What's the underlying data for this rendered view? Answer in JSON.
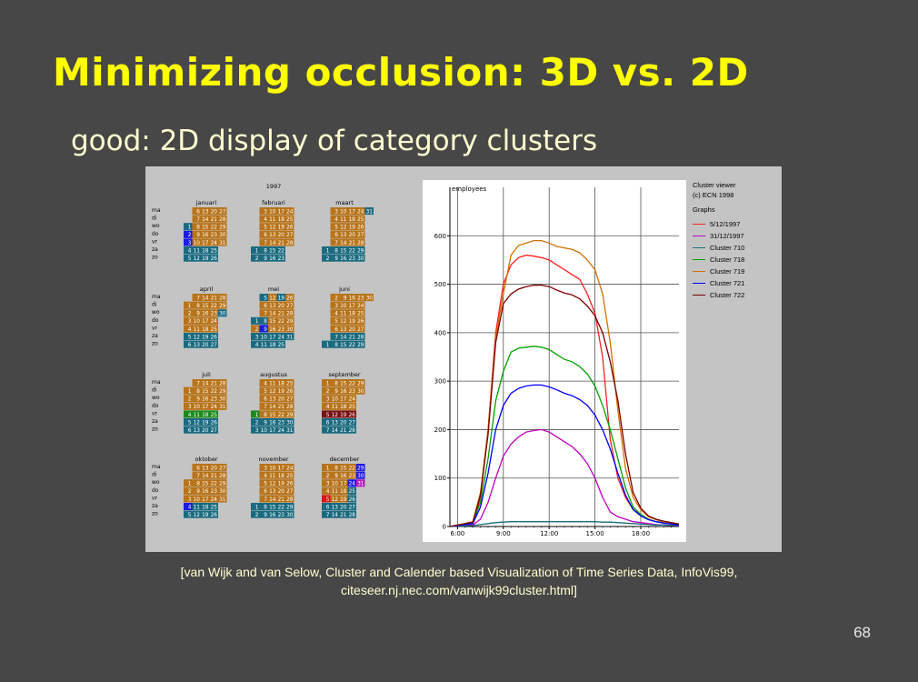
{
  "slide": {
    "title": "Minimizing occlusion: 3D vs. 2D",
    "subtitle": "good: 2D display of category clusters",
    "caption_line1": "[van Wijk and van Selow, Cluster and Calender based Visualization of Time Series Data, InfoVis99,",
    "caption_line2": "citeseer.nj.nec.com/vanwijk99cluster.html]",
    "page_number": "68"
  },
  "calendar": {
    "year": "1997",
    "day_labels": [
      "ma",
      "di",
      "wo",
      "do",
      "vr",
      "za",
      "zo"
    ],
    "colors": {
      "brown": "#b8741a",
      "teal": "#1a6b80",
      "darkred": "#7a0f0f",
      "green": "#1d8a1d",
      "blue": "#1a1ae0",
      "magenta": "#b020b0",
      "red": "#e01010"
    },
    "months": [
      {
        "name": "januari",
        "start": 2,
        "days": 31,
        "special": {
          "1": "teal",
          "2": "blue",
          "3": "blue",
          "4": "teal",
          "5": "teal",
          "11": "teal",
          "12": "teal",
          "18": "teal",
          "19": "teal",
          "25": "teal",
          "26": "teal"
        }
      },
      {
        "name": "februari",
        "start": 5,
        "days": 28,
        "special": {
          "1": "teal",
          "2": "teal",
          "8": "teal",
          "9": "teal",
          "15": "teal",
          "16": "teal",
          "22": "teal",
          "23": "teal"
        }
      },
      {
        "name": "maart",
        "start": 5,
        "days": 31,
        "special": {
          "1": "teal",
          "2": "teal",
          "8": "teal",
          "9": "teal",
          "15": "teal",
          "16": "teal",
          "22": "teal",
          "23": "teal",
          "29": "teal",
          "30": "teal",
          "31": "teal"
        }
      },
      {
        "name": "april",
        "start": 1,
        "days": 30,
        "special": {
          "5": "teal",
          "6": "teal",
          "12": "teal",
          "13": "teal",
          "19": "teal",
          "20": "teal",
          "26": "teal",
          "27": "teal",
          "30": "teal"
        }
      },
      {
        "name": "mei",
        "start": 3,
        "days": 31,
        "special": {
          "3": "teal",
          "4": "teal",
          "5": "teal",
          "10": "teal",
          "11": "teal",
          "17": "teal",
          "18": "teal",
          "24": "teal",
          "25": "teal",
          "31": "teal",
          "1": "teal",
          "8": "teal",
          "9": "blue",
          "19": "teal"
        }
      },
      {
        "name": "juni",
        "start": 6,
        "days": 30,
        "special": {
          "1": "teal",
          "7": "teal",
          "8": "teal",
          "14": "teal",
          "15": "teal",
          "21": "teal",
          "22": "teal",
          "28": "teal",
          "29": "teal",
          "2": "brown",
          "9": "brown",
          "16": "brown",
          "23": "brown",
          "30": "brown"
        }
      },
      {
        "name": "juli",
        "start": 1,
        "days": 31,
        "special": {
          "4": "green",
          "11": "green",
          "18": "green",
          "25": "green",
          "5": "teal",
          "6": "teal",
          "12": "teal",
          "13": "teal",
          "19": "teal",
          "20": "teal",
          "26": "teal",
          "27": "teal"
        }
      },
      {
        "name": "augustus",
        "start": 4,
        "days": 31,
        "special": {
          "1": "green",
          "2": "teal",
          "3": "teal",
          "9": "teal",
          "10": "teal",
          "16": "teal",
          "17": "teal",
          "23": "teal",
          "24": "teal",
          "30": "teal",
          "31": "teal"
        }
      },
      {
        "name": "september",
        "start": 0,
        "days": 30,
        "special": {
          "5": "darkred",
          "12": "darkred",
          "19": "darkred",
          "26": "darkred",
          "6": "teal",
          "7": "teal",
          "13": "teal",
          "14": "teal",
          "20": "teal",
          "21": "teal",
          "27": "teal",
          "28": "teal"
        }
      },
      {
        "name": "oktober",
        "start": 2,
        "days": 31,
        "special": {
          "4": "blue",
          "5": "teal",
          "11": "teal",
          "12": "teal",
          "18": "teal",
          "19": "teal",
          "25": "teal",
          "26": "teal"
        }
      },
      {
        "name": "november",
        "start": 5,
        "days": 30,
        "special": {
          "1": "teal",
          "2": "teal",
          "8": "teal",
          "9": "teal",
          "15": "teal",
          "16": "teal",
          "22": "teal",
          "23": "teal",
          "29": "teal",
          "30": "teal"
        }
      },
      {
        "name": "december",
        "start": 0,
        "days": 31,
        "special": {
          "29": "blue",
          "30": "blue",
          "31": "magenta",
          "24": "blue",
          "5": "red",
          "6": "teal",
          "7": "teal",
          "13": "teal",
          "14": "teal",
          "20": "teal",
          "21": "teal",
          "27": "teal",
          "28": "teal",
          "25": "teal",
          "26": "teal"
        }
      }
    ]
  },
  "chart_data": {
    "type": "line",
    "ylabel": "employees",
    "xlim": [
      5.5,
      20.5
    ],
    "ylim": [
      0,
      700
    ],
    "x_ticks": [
      "6:00",
      "9:00",
      "12:00",
      "15:00",
      "18:00"
    ],
    "x_tick_values": [
      6,
      9,
      12,
      15,
      18
    ],
    "y_ticks": [
      0,
      100,
      200,
      300,
      400,
      500,
      600
    ],
    "x": [
      5.5,
      6,
      7,
      7.5,
      8,
      8.5,
      9,
      9.5,
      10,
      10.5,
      11,
      11.5,
      12,
      12.5,
      13,
      13.5,
      14,
      14.5,
      15,
      15.5,
      16,
      16.5,
      17,
      17.5,
      18,
      18.5,
      19,
      19.5,
      20,
      20.5
    ],
    "series": [
      {
        "name": "5/12/1997",
        "color": "#ff2020",
        "values": [
          0,
          2,
          5,
          60,
          200,
          400,
          500,
          540,
          555,
          560,
          558,
          555,
          550,
          540,
          530,
          520,
          510,
          480,
          440,
          350,
          180,
          100,
          60,
          35,
          25,
          15,
          10,
          8,
          5,
          3
        ]
      },
      {
        "name": "31/12/1997",
        "color": "#c000c0",
        "values": [
          0,
          1,
          3,
          15,
          50,
          100,
          145,
          170,
          185,
          195,
          198,
          200,
          195,
          185,
          175,
          165,
          150,
          130,
          100,
          60,
          30,
          20,
          15,
          10,
          8,
          6,
          4,
          3,
          2,
          1
        ]
      },
      {
        "name": "Cluster 710",
        "color": "#1a6b80",
        "values": [
          0,
          1,
          2,
          4,
          6,
          8,
          9,
          10,
          10,
          10,
          10,
          10,
          10,
          10,
          10,
          10,
          10,
          10,
          10,
          9,
          9,
          8,
          7,
          6,
          5,
          4,
          3,
          3,
          2,
          2
        ]
      },
      {
        "name": "Cluster 718",
        "color": "#00a000",
        "values": [
          0,
          2,
          8,
          50,
          140,
          260,
          320,
          360,
          368,
          370,
          372,
          370,
          365,
          355,
          345,
          340,
          330,
          315,
          290,
          250,
          200,
          140,
          80,
          40,
          25,
          15,
          10,
          8,
          5,
          3
        ]
      },
      {
        "name": "Cluster 719",
        "color": "#d07000",
        "values": [
          0,
          3,
          10,
          70,
          200,
          390,
          480,
          560,
          580,
          585,
          590,
          590,
          585,
          578,
          575,
          572,
          565,
          550,
          530,
          480,
          380,
          240,
          120,
          60,
          35,
          20,
          14,
          10,
          7,
          5
        ]
      },
      {
        "name": "Cluster 721",
        "color": "#0000ff",
        "values": [
          0,
          2,
          6,
          40,
          110,
          200,
          250,
          275,
          285,
          290,
          292,
          292,
          288,
          282,
          275,
          270,
          262,
          250,
          230,
          200,
          160,
          110,
          65,
          35,
          22,
          14,
          10,
          7,
          5,
          3
        ]
      },
      {
        "name": "Cluster 722",
        "color": "#7a0000",
        "values": [
          0,
          3,
          9,
          65,
          190,
          380,
          460,
          480,
          490,
          495,
          498,
          498,
          495,
          488,
          482,
          478,
          470,
          455,
          435,
          400,
          340,
          260,
          150,
          70,
          38,
          22,
          15,
          11,
          8,
          5
        ]
      }
    ]
  },
  "legend": {
    "line1": "Cluster viewer",
    "line2": "(c) ECN 1998",
    "heading": "Graphs"
  }
}
